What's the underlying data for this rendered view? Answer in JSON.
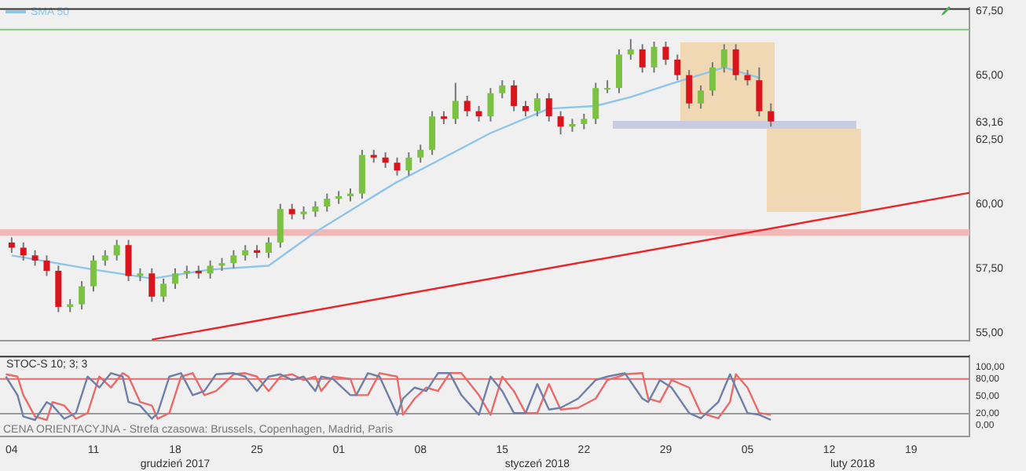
{
  "chart_data": [
    {
      "type": "candlestick",
      "legend": "top left",
      "tick_labels": "y",
      "x": [
        "2017-12-04",
        "2017-12-05",
        "2017-12-06",
        "2017-12-07",
        "2017-12-08",
        "2017-12-09",
        "2017-12-10",
        "2017-12-11",
        "2017-12-12",
        "2017-12-13",
        "2017-12-14",
        "2017-12-15",
        "2017-12-16",
        "2017-12-17",
        "2017-12-18",
        "2017-12-19",
        "2017-12-20",
        "2017-12-21",
        "2017-12-22",
        "2017-12-23",
        "2017-12-24",
        "2017-12-25",
        "2017-12-26",
        "2017-12-27",
        "2017-12-28",
        "2017-12-29",
        "2017-12-30",
        "2017-12-31",
        "2018-01-01",
        "2018-01-02",
        "2018-01-03",
        "2018-01-04",
        "2018-01-05",
        "2018-01-06",
        "2018-01-07",
        "2018-01-08",
        "2018-01-09",
        "2018-01-10",
        "2018-01-11",
        "2018-01-12",
        "2018-01-13",
        "2018-01-14",
        "2018-01-15",
        "2018-01-16",
        "2018-01-17",
        "2018-01-18",
        "2018-01-19",
        "2018-01-20",
        "2018-01-21",
        "2018-01-22",
        "2018-01-23",
        "2018-01-24",
        "2018-01-25",
        "2018-01-26",
        "2018-01-27",
        "2018-01-28",
        "2018-01-29",
        "2018-01-30",
        "2018-01-31",
        "2018-02-01",
        "2018-02-02",
        "2018-02-03",
        "2018-02-04",
        "2018-02-05",
        "2018-02-06",
        "2018-02-07"
      ],
      "ohlc": [
        [
          58.5,
          58.7,
          58.1,
          58.3
        ],
        [
          58.3,
          58.5,
          57.8,
          58.0
        ],
        [
          58.0,
          58.2,
          57.6,
          57.8
        ],
        [
          57.8,
          58.0,
          57.2,
          57.4
        ],
        [
          57.4,
          57.6,
          55.8,
          56.0
        ],
        [
          56.0,
          56.3,
          55.8,
          56.1
        ],
        [
          56.1,
          57.0,
          55.9,
          56.8
        ],
        [
          56.8,
          58.0,
          56.6,
          57.8
        ],
        [
          57.8,
          58.2,
          57.6,
          58.0
        ],
        [
          58.0,
          58.6,
          57.8,
          58.4
        ],
        [
          58.4,
          58.6,
          57.0,
          57.2
        ],
        [
          57.2,
          57.5,
          57.0,
          57.3
        ],
        [
          57.3,
          57.5,
          56.2,
          56.4
        ],
        [
          56.4,
          57.1,
          56.2,
          56.9
        ],
        [
          56.9,
          57.5,
          56.7,
          57.3
        ],
        [
          57.3,
          57.6,
          57.1,
          57.4
        ],
        [
          57.4,
          57.6,
          57.1,
          57.3
        ],
        [
          57.3,
          57.8,
          57.1,
          57.6
        ],
        [
          57.6,
          57.9,
          57.4,
          57.7
        ],
        [
          57.7,
          58.2,
          57.5,
          58.0
        ],
        [
          58.0,
          58.4,
          57.8,
          58.2
        ],
        [
          58.2,
          58.4,
          57.9,
          58.1
        ],
        [
          58.1,
          58.7,
          57.9,
          58.5
        ],
        [
          58.5,
          60.0,
          58.3,
          59.8
        ],
        [
          59.8,
          60.0,
          59.4,
          59.6
        ],
        [
          59.6,
          59.9,
          59.4,
          59.7
        ],
        [
          59.7,
          60.1,
          59.5,
          59.9
        ],
        [
          59.9,
          60.4,
          59.7,
          60.2
        ],
        [
          60.2,
          60.5,
          60.0,
          60.3
        ],
        [
          60.3,
          60.6,
          60.1,
          60.4
        ],
        [
          60.4,
          62.1,
          60.2,
          61.9
        ],
        [
          61.9,
          62.1,
          61.6,
          61.8
        ],
        [
          61.8,
          62.0,
          61.4,
          61.6
        ],
        [
          61.6,
          61.8,
          61.1,
          61.3
        ],
        [
          61.3,
          62.0,
          61.1,
          61.8
        ],
        [
          61.8,
          62.3,
          61.6,
          62.1
        ],
        [
          62.1,
          63.6,
          61.9,
          63.4
        ],
        [
          63.4,
          63.6,
          63.1,
          63.3
        ],
        [
          63.3,
          64.7,
          63.1,
          64.0
        ],
        [
          64.0,
          64.2,
          63.4,
          63.6
        ],
        [
          63.6,
          63.8,
          63.2,
          63.4
        ],
        [
          63.4,
          64.5,
          63.2,
          64.3
        ],
        [
          64.3,
          64.8,
          64.1,
          64.6
        ],
        [
          64.6,
          64.8,
          63.6,
          63.8
        ],
        [
          63.8,
          64.0,
          63.4,
          63.6
        ],
        [
          63.6,
          64.3,
          63.4,
          64.1
        ],
        [
          64.1,
          64.3,
          63.2,
          63.4
        ],
        [
          63.4,
          63.6,
          62.7,
          63.0
        ],
        [
          63.0,
          63.3,
          62.8,
          63.1
        ],
        [
          63.1,
          63.5,
          62.9,
          63.3
        ],
        [
          63.3,
          64.7,
          63.1,
          64.5
        ],
        [
          64.5,
          64.8,
          64.3,
          64.5
        ],
        [
          64.5,
          66.0,
          64.3,
          65.8
        ],
        [
          65.8,
          66.4,
          65.6,
          66.0
        ],
        [
          66.0,
          66.2,
          65.1,
          65.3
        ],
        [
          65.3,
          66.3,
          65.1,
          66.1
        ],
        [
          66.1,
          66.3,
          65.4,
          65.6
        ],
        [
          65.6,
          65.8,
          64.8,
          65.0
        ],
        [
          65.0,
          65.2,
          63.7,
          63.9
        ],
        [
          63.9,
          64.6,
          63.7,
          64.4
        ],
        [
          64.4,
          65.5,
          64.2,
          65.3
        ],
        [
          65.3,
          66.2,
          65.1,
          66.0
        ],
        [
          66.0,
          66.2,
          64.8,
          65.0
        ],
        [
          65.0,
          65.2,
          64.6,
          64.8
        ],
        [
          64.8,
          65.3,
          63.4,
          63.6
        ],
        [
          63.6,
          63.9,
          63.0,
          63.2
        ]
      ],
      "series": [
        {
          "name": "SMA 50",
          "type": "line",
          "color": "#8ec5e8",
          "x": [
            "2017-12-04",
            "2017-12-11",
            "2017-12-16",
            "2017-12-21",
            "2017-12-26",
            "2017-12-30",
            "2018-01-04",
            "2018-01-06",
            "2018-01-14",
            "2018-01-19",
            "2018-01-23",
            "2018-01-26",
            "2018-01-29",
            "2018-02-03",
            "2018-02-06"
          ],
          "values": [
            58.0,
            57.45,
            57.1,
            57.45,
            57.6,
            58.9,
            60.3,
            60.85,
            62.75,
            63.7,
            63.8,
            64.15,
            64.6,
            65.3,
            64.9
          ]
        },
        {
          "type": "line",
          "color": "#e8252a",
          "x": [
            "2017-12-16",
            "2018-02-24"
          ],
          "values": [
            54.73,
            60.43
          ]
        }
      ],
      "xlim": [
        "2017-12-03",
        "2018-02-24"
      ],
      "ylim": [
        54.7,
        67.6
      ],
      "yticks": [
        {
          "value": 55,
          "label": "55,00"
        },
        {
          "value": 57.5,
          "label": "57,50"
        },
        {
          "value": 60,
          "label": "60,00"
        },
        {
          "value": 62.5,
          "label": "62,50"
        },
        {
          "value": 63.16,
          "label": "63,16"
        },
        {
          "value": 65,
          "label": "65,00"
        },
        {
          "value": 67.5,
          "label": "67,50"
        }
      ],
      "ref_lines": [
        {
          "axis": "y",
          "value": 66.77,
          "color": "#7dc87d"
        }
      ],
      "bands": [
        {
          "axis": "y",
          "from": 58.76,
          "to": 59.02,
          "color": "#f2b8b8"
        }
      ]
    },
    {
      "type": "line",
      "title": "STOC-S 10; 3; 3",
      "x": [
        "2017-12-03T12:00",
        "2017-12-04T12:00",
        "2017-12-05",
        "2017-12-06",
        "2017-12-07",
        "2017-12-07T12:00",
        "2017-12-08T12:00",
        "2017-12-09T12:00",
        "2017-12-10T12:00",
        "2017-12-11T12:00",
        "2017-12-12T12:00",
        "2017-12-13T12:00",
        "2017-12-14",
        "2017-12-15",
        "2017-12-16",
        "2017-12-16T12:00",
        "2017-12-17T12:00",
        "2017-12-18T12:00",
        "2017-12-19T12:00",
        "2017-12-20T12:00",
        "2017-12-21T12:00",
        "2017-12-23",
        "2017-12-24",
        "2017-12-25",
        "2017-12-26",
        "2017-12-27",
        "2017-12-28",
        "2017-12-29",
        "2017-12-30",
        "2017-12-30T12:00",
        "2017-12-31T12:00",
        "2018-01-02",
        "2018-01-02T12:00",
        "2018-01-03T12:00",
        "2018-01-04T12:00",
        "2018-01-06",
        "2018-01-06T12:00",
        "2018-01-07T12:00",
        "2018-01-08T12:00",
        "2018-01-09T12:00",
        "2018-01-10T12:00",
        "2018-01-11T12:00",
        "2018-01-13",
        "2018-01-14",
        "2018-01-15",
        "2018-01-16",
        "2018-01-17",
        "2018-01-18",
        "2018-01-19",
        "2018-01-20",
        "2018-01-21T12:00",
        "2018-01-23",
        "2018-01-24",
        "2018-01-25",
        "2018-01-25T12:00",
        "2018-01-27",
        "2018-01-27T12:00",
        "2018-01-28T12:00",
        "2018-01-29T12:00",
        "2018-01-31",
        "2018-02-01",
        "2018-02-02T12:00",
        "2018-02-03T12:00",
        "2018-02-04",
        "2018-02-05",
        "2018-02-06",
        "2018-02-07"
      ],
      "series": [
        {
          "color": "#6f7fa8",
          "values": [
            84,
            52,
            15,
            9,
            40,
            34,
            11,
            21,
            84,
            65,
            90,
            84,
            40,
            34,
            11,
            21,
            84,
            90,
            52,
            59,
            88,
            90,
            84,
            59,
            84,
            88,
            78,
            84,
            59,
            84,
            80,
            52,
            52,
            90,
            84,
            18,
            46,
            65,
            59,
            90,
            90,
            52,
            18,
            84,
            59,
            21,
            21,
            71,
            27,
            30,
            46,
            78,
            84,
            88,
            90,
            46,
            40,
            78,
            65,
            21,
            12,
            40,
            88,
            65,
            21,
            18,
            9
          ]
        },
        {
          "color": "#e86a6a",
          "values": [
            88,
            84,
            52,
            15,
            9,
            40,
            34,
            11,
            21,
            84,
            65,
            90,
            84,
            40,
            34,
            11,
            21,
            84,
            90,
            52,
            59,
            88,
            90,
            84,
            59,
            84,
            88,
            78,
            84,
            59,
            84,
            80,
            52,
            52,
            90,
            84,
            18,
            46,
            65,
            59,
            90,
            90,
            52,
            18,
            84,
            59,
            21,
            21,
            71,
            27,
            30,
            46,
            78,
            84,
            88,
            90,
            46,
            40,
            78,
            65,
            21,
            12,
            40,
            88,
            65,
            21,
            18
          ]
        }
      ],
      "xlim": [
        "2017-12-03",
        "2018-02-24"
      ],
      "xticks": [
        {
          "value": "2017-12-04",
          "label": "04"
        },
        {
          "value": "2017-12-11",
          "label": "11"
        },
        {
          "value": "2017-12-18",
          "label": "18"
        },
        {
          "value": "2017-12-25",
          "label": "25"
        },
        {
          "value": "2018-01-01",
          "label": "01"
        },
        {
          "value": "2018-01-08",
          "label": "08"
        },
        {
          "value": "2018-01-15",
          "label": "15"
        },
        {
          "value": "2018-01-22",
          "label": "22"
        },
        {
          "value": "2018-01-29",
          "label": "29"
        },
        {
          "value": "2018-02-05",
          "label": "05"
        },
        {
          "value": "2018-02-12",
          "label": "12"
        },
        {
          "value": "2018-02-19",
          "label": "19"
        }
      ],
      "x2ticks": [
        {
          "value": "2017-12-18",
          "label": "grudzień 2017"
        },
        {
          "value": "2018-01-18",
          "label": "styczeń 2018"
        },
        {
          "value": "2018-02-14",
          "label": "luty 2018"
        }
      ],
      "x2lim": [
        "2017-12-03",
        "2018-02-24"
      ],
      "ylim": [
        -20,
        120
      ],
      "yticks": [
        {
          "value": 0,
          "label": "0,00"
        },
        {
          "value": 20,
          "label": "20,00"
        },
        {
          "value": 50,
          "label": "50,00"
        },
        {
          "value": 80,
          "label": "80,00"
        },
        {
          "value": 100,
          "label": "100,00"
        }
      ],
      "ref_lines": [
        {
          "axis": "y",
          "value": 80,
          "color": "#e86a6a"
        },
        {
          "axis": "y",
          "value": 20,
          "color": "#9a9a9a"
        }
      ],
      "annotations": [
        "CENA ORIENTACYJNA - Strefa czasowa: Brussels, Copenhagen, Madrid, Paris"
      ]
    }
  ]
}
